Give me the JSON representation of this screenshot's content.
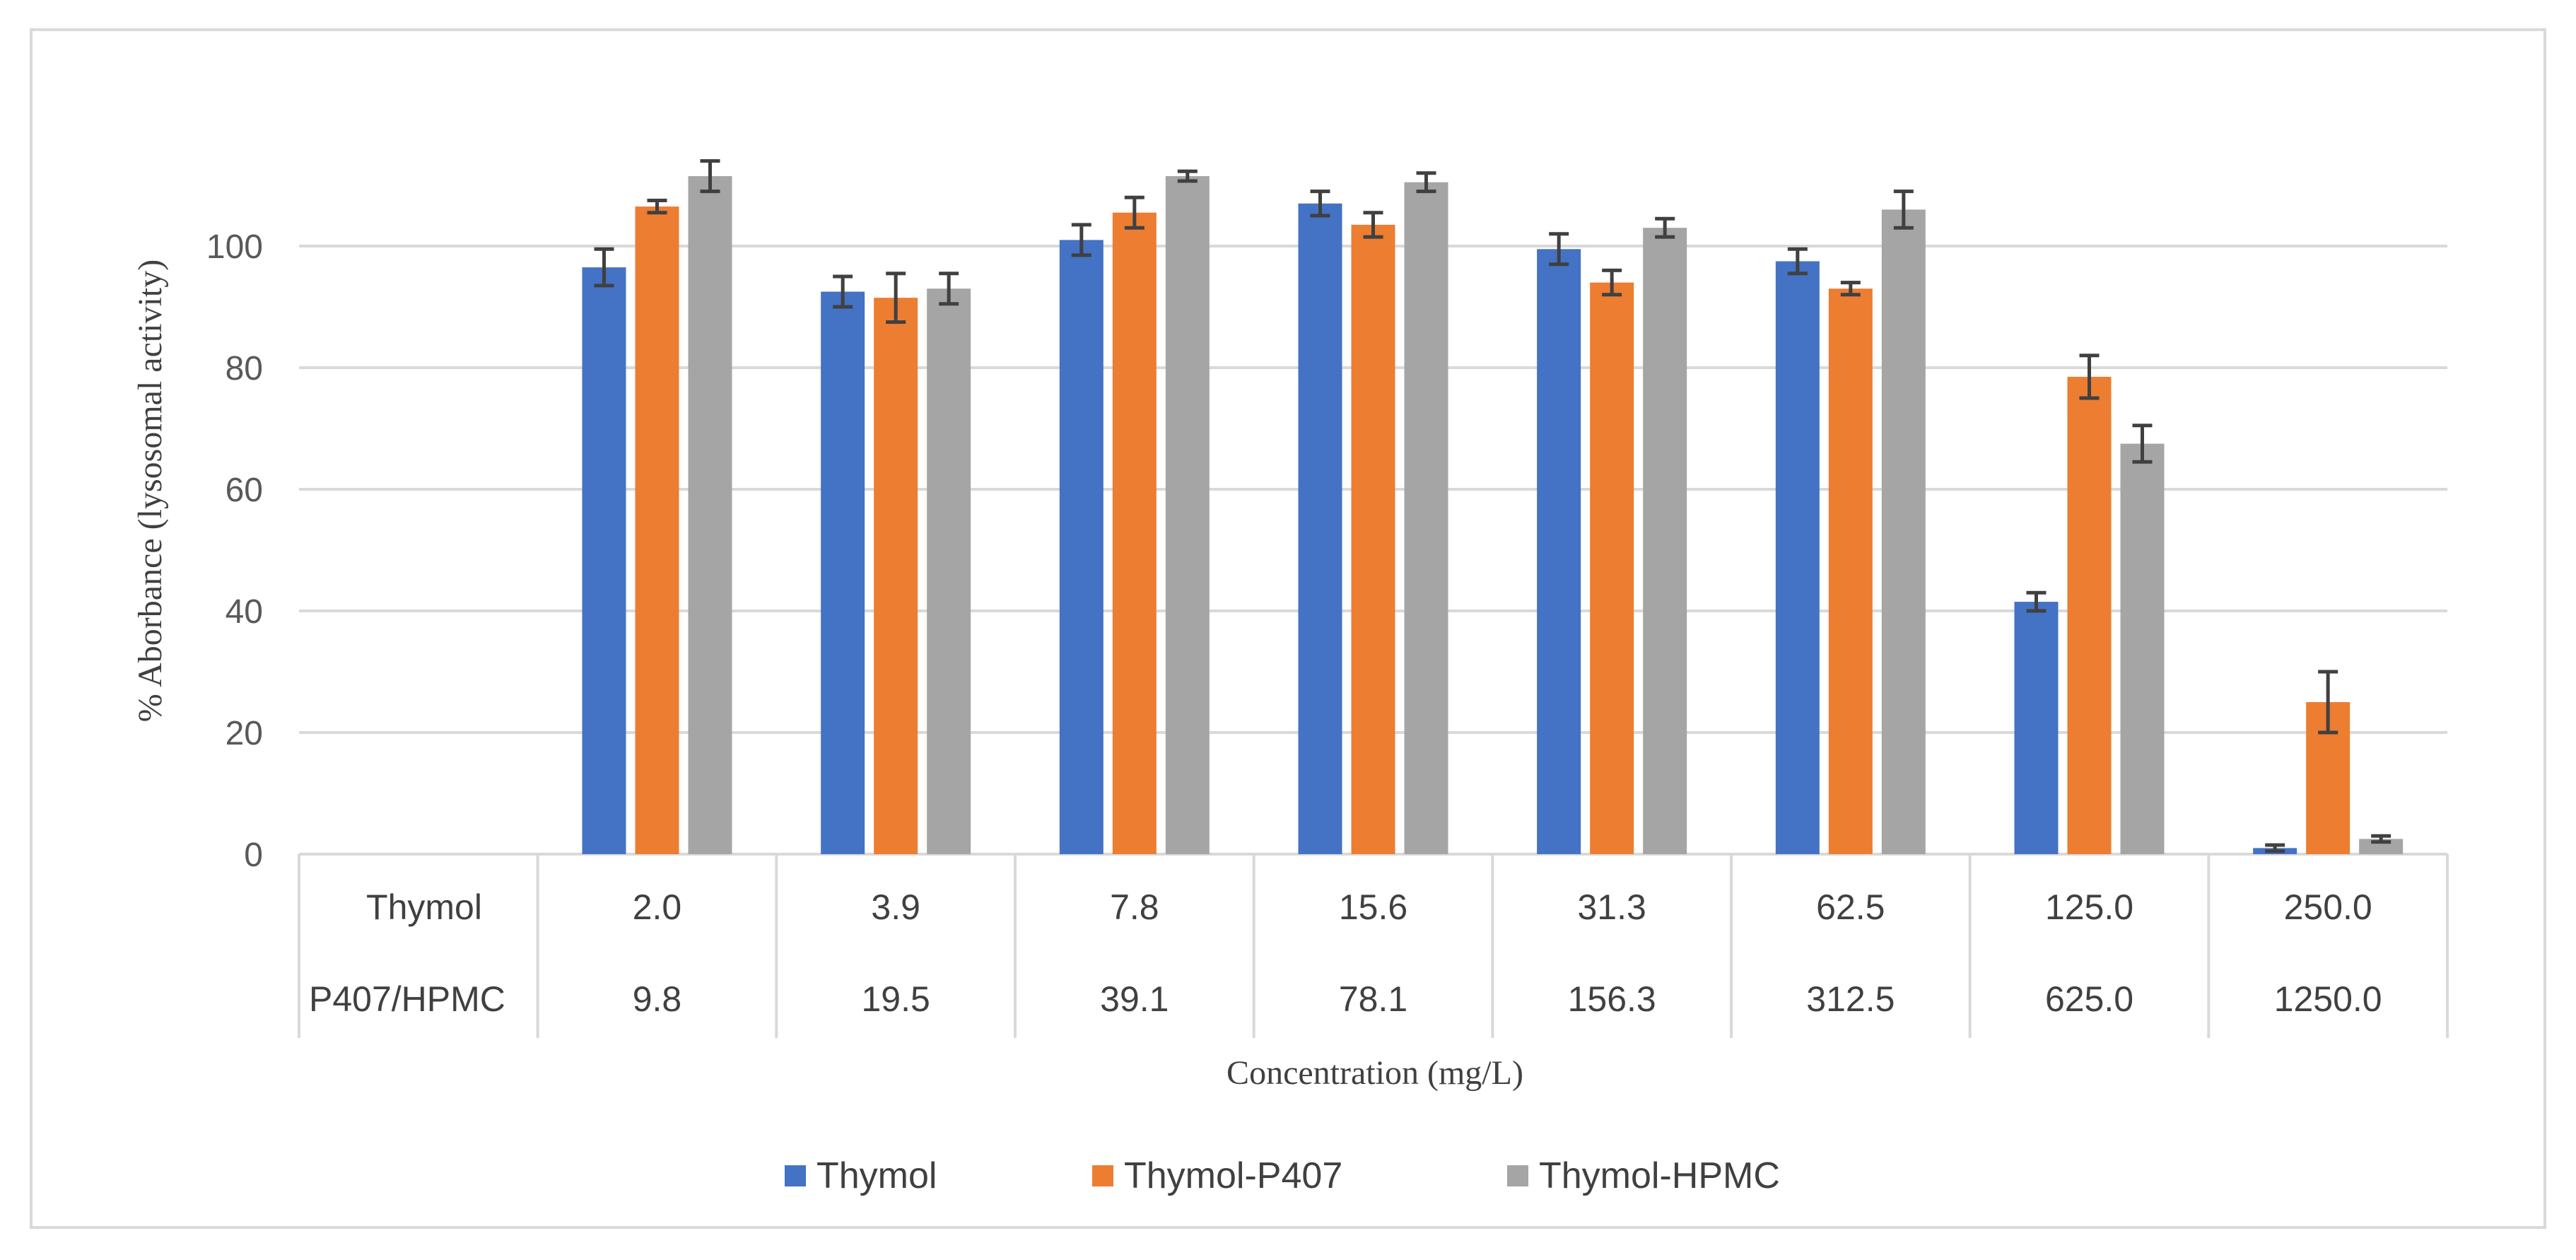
{
  "chart_data": {
    "type": "bar",
    "title": "",
    "xlabel": "Concentration (mg/L)",
    "ylabel": "% Aborbance (lysosomal activity)",
    "ylim": [
      0,
      120
    ],
    "yticks": [
      0,
      20,
      40,
      60,
      80,
      100
    ],
    "grid": true,
    "legend_position": "bottom",
    "category_rows": [
      {
        "label": "Thymol",
        "values": [
          "",
          "2.0",
          "3.9",
          "7.8",
          "15.6",
          "31.3",
          "62.5",
          "125.0",
          "250.0"
        ]
      },
      {
        "label": "P407/HPMC",
        "values": [
          "",
          "9.8",
          "19.5",
          "39.1",
          "78.1",
          "156.3",
          "312.5",
          "625.0",
          "1250.0"
        ]
      }
    ],
    "series": [
      {
        "name": "Thymol",
        "color": "#4472c4",
        "values": [
          null,
          96.5,
          92.5,
          101,
          107,
          99.5,
          97.5,
          41.5,
          1
        ],
        "errors": [
          null,
          3.0,
          2.5,
          2.5,
          2.0,
          2.5,
          2.0,
          1.5,
          0.5
        ]
      },
      {
        "name": "Thymol-P407",
        "color": "#ed7d31",
        "values": [
          null,
          106.5,
          91.5,
          105.5,
          103.5,
          94,
          93,
          78.5,
          25
        ],
        "errors": [
          null,
          1.0,
          4.0,
          2.5,
          2.0,
          2.0,
          1.0,
          3.5,
          5.0
        ]
      },
      {
        "name": "Thymol-HPMC",
        "color": "#a5a5a5",
        "values": [
          null,
          111.5,
          93,
          111.5,
          110.5,
          103,
          106,
          67.5,
          2.5
        ],
        "errors": [
          null,
          2.5,
          2.5,
          0.8,
          1.5,
          1.5,
          3.0,
          3.0,
          0.5
        ]
      }
    ],
    "error_bar_color": "#404040",
    "axis_color": "#d9d9d9"
  }
}
